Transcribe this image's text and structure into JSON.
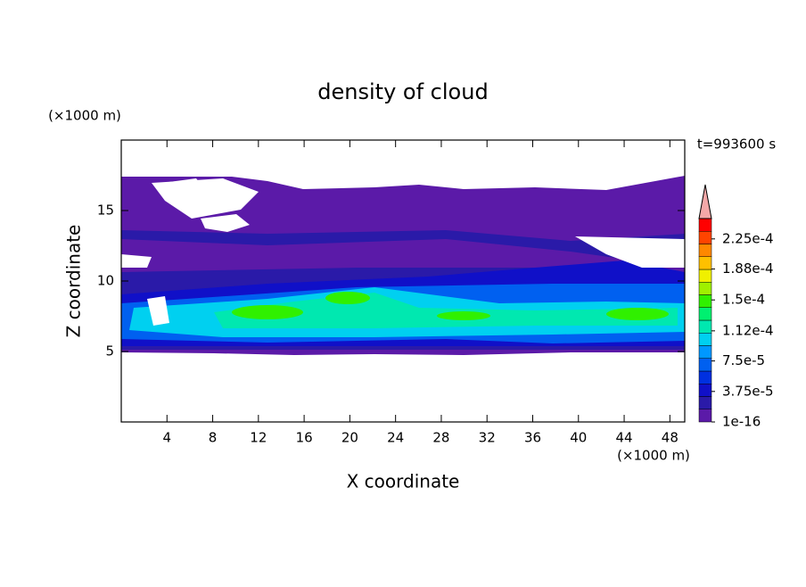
{
  "chart_data": {
    "type": "contour",
    "title": "density of cloud",
    "x_label": "X coordinate",
    "y_label": "Z coordinate",
    "x_unit": "(×1000 m)",
    "y_unit": "(×1000 m)",
    "annotation": "t=993600 s",
    "xlim": [
      0,
      49.3
    ],
    "xticks": [
      4,
      8,
      12,
      16,
      20,
      24,
      28,
      32,
      36,
      40,
      44,
      48
    ],
    "ylim": [
      0,
      20
    ],
    "yticks": [
      5,
      10,
      15
    ],
    "colorbar": {
      "lim": [
        1e-16,
        0.00025
      ],
      "ticks": [
        1e-16,
        {
          "value": 3.75e-05,
          "label": "3.75e-5"
        },
        {
          "value": 7.5e-05,
          "label": "7.5e-5"
        },
        {
          "value": 0.000112,
          "label": "1.12e-4"
        },
        {
          "value": 0.00015,
          "label": "1.5e-4"
        },
        {
          "value": 0.000188,
          "label": "1.88e-4"
        },
        {
          "value": 0.000225,
          "label": "2.25e-4"
        }
      ],
      "colors": [
        "#5b1aa8",
        "#2a1aa8",
        "#1010c8",
        "#0030e0",
        "#0060f0",
        "#0098ff",
        "#00d0f0",
        "#00e8b0",
        "#00f070",
        "#30f000",
        "#a0f000",
        "#f0f000",
        "#ffc000",
        "#ff8800",
        "#ff4400",
        "#ff0000"
      ],
      "extend_color": "#f4a8a8"
    }
  }
}
